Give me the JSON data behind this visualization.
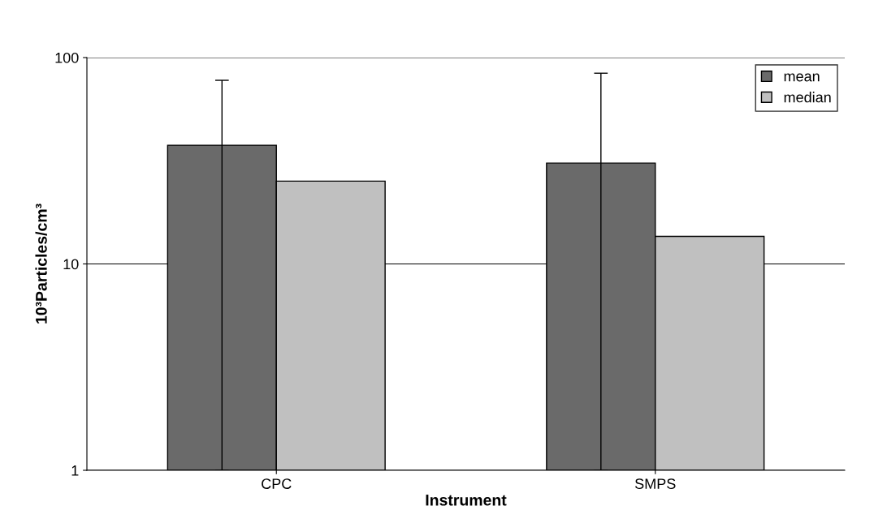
{
  "chart_data": {
    "type": "bar",
    "xlabel": "Instrument",
    "ylabel": "10³Particles/cm³",
    "categories": [
      "CPC",
      "SMPS"
    ],
    "series": [
      {
        "name": "mean",
        "color": "#6a6a6a",
        "values": [
          37.6,
          30.8
        ],
        "errors": [
          [
            1,
            77.6
          ],
          [
            1,
            84
          ]
        ]
      },
      {
        "name": "median",
        "color": "#c0c0c0",
        "values": [
          25.2,
          13.6
        ]
      }
    ],
    "log": "y",
    "ylim": [
      1,
      100
    ],
    "yticks": [
      1,
      10,
      100
    ],
    "grid": "y",
    "legend": "top right"
  }
}
